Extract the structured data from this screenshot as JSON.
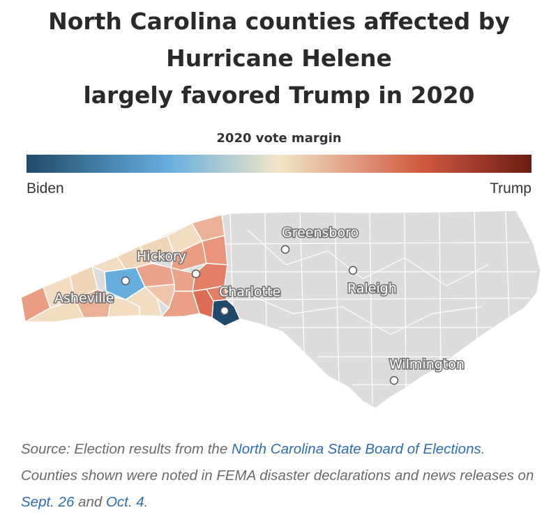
{
  "title": {
    "line1": "North Carolina counties affected by",
    "line2": "Hurricane Helene",
    "line3": "largely favored Trump in 2020"
  },
  "legend": {
    "title": "2020 vote margin",
    "left_label": "Biden",
    "right_label": "Trump",
    "colors": [
      "#1f4a6b",
      "#66aede",
      "#f2e6c8",
      "#d25a40",
      "#6a1d14"
    ]
  },
  "map": {
    "state": "North Carolina",
    "highlighted_region": "Western North Carolina",
    "colors": {
      "unaffected": "#dcdcdc",
      "county_border": "#ffffff",
      "strong_biden": "#1f4a6b",
      "lean_biden": "#66aede",
      "lean_trump": "#f2ddc2",
      "trump": "#eaa28a",
      "strong_trump": "#d5614a"
    },
    "cities": [
      {
        "name": "Greensboro"
      },
      {
        "name": "Hickory"
      },
      {
        "name": "Asheville"
      },
      {
        "name": "Charlotte"
      },
      {
        "name": "Raleigh"
      },
      {
        "name": "Wilmington"
      }
    ]
  },
  "source": {
    "prefix": "Source: Election results from the ",
    "link1": "North Carolina State Board of Elections",
    "middle": ". Counties shown were noted in FEMA disaster declarations and news releases on ",
    "link2": "Sept. 26",
    "and": " and ",
    "link3": "Oct. 4",
    "end": "."
  }
}
